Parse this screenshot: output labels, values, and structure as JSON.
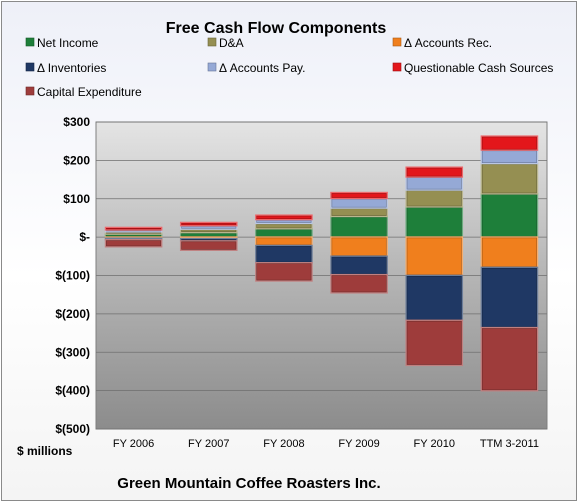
{
  "chart_data": {
    "type": "bar",
    "stacked": true,
    "title": "Free Cash Flow Components",
    "ylabel": "$ millions",
    "footer": "Green Mountain Coffee Roasters Inc.",
    "categories": [
      "FY 2006",
      "FY 2007",
      "FY 2008",
      "FY 2009",
      "FY 2010",
      "TTM 3-2011"
    ],
    "ylim": [
      -500,
      300
    ],
    "yticks": [
      300,
      200,
      100,
      0,
      -100,
      -200,
      -300,
      -400,
      -500
    ],
    "ytick_labels": [
      "$300",
      "$200",
      "$100",
      "$-",
      "$(100)",
      "$(200)",
      "$(300)",
      "$(400)",
      "$(500)"
    ],
    "grid": true,
    "legend_position": "top",
    "series": [
      {
        "name": "Net Income",
        "color": "#1e7f3a",
        "values": [
          8,
          12,
          22,
          54,
          79,
          113
        ]
      },
      {
        "name": "D&A",
        "color": "#958f52",
        "values": [
          6,
          9,
          14,
          22,
          44,
          79
        ]
      },
      {
        "name": "Δ Accounts Rec.",
        "color": "#f07f1d",
        "values": [
          -3,
          -4,
          -22,
          -50,
          -100,
          -79
        ]
      },
      {
        "name": "Δ Inventories",
        "color": "#1f3864",
        "values": [
          -4,
          -6,
          -45,
          -48,
          -117,
          -157
        ]
      },
      {
        "name": "Δ Accounts Pay.",
        "color": "#95a9d6",
        "values": [
          5,
          9,
          10,
          25,
          34,
          35
        ]
      },
      {
        "name": "Questionable Cash Sources",
        "color": "#e3161b",
        "values": [
          6,
          8,
          11,
          15,
          25,
          36
        ]
      },
      {
        "name": "Capital Expenditure",
        "color": "#9e3c3b",
        "values": [
          -18,
          -24,
          -47,
          -47,
          -117,
          -164
        ]
      }
    ]
  }
}
